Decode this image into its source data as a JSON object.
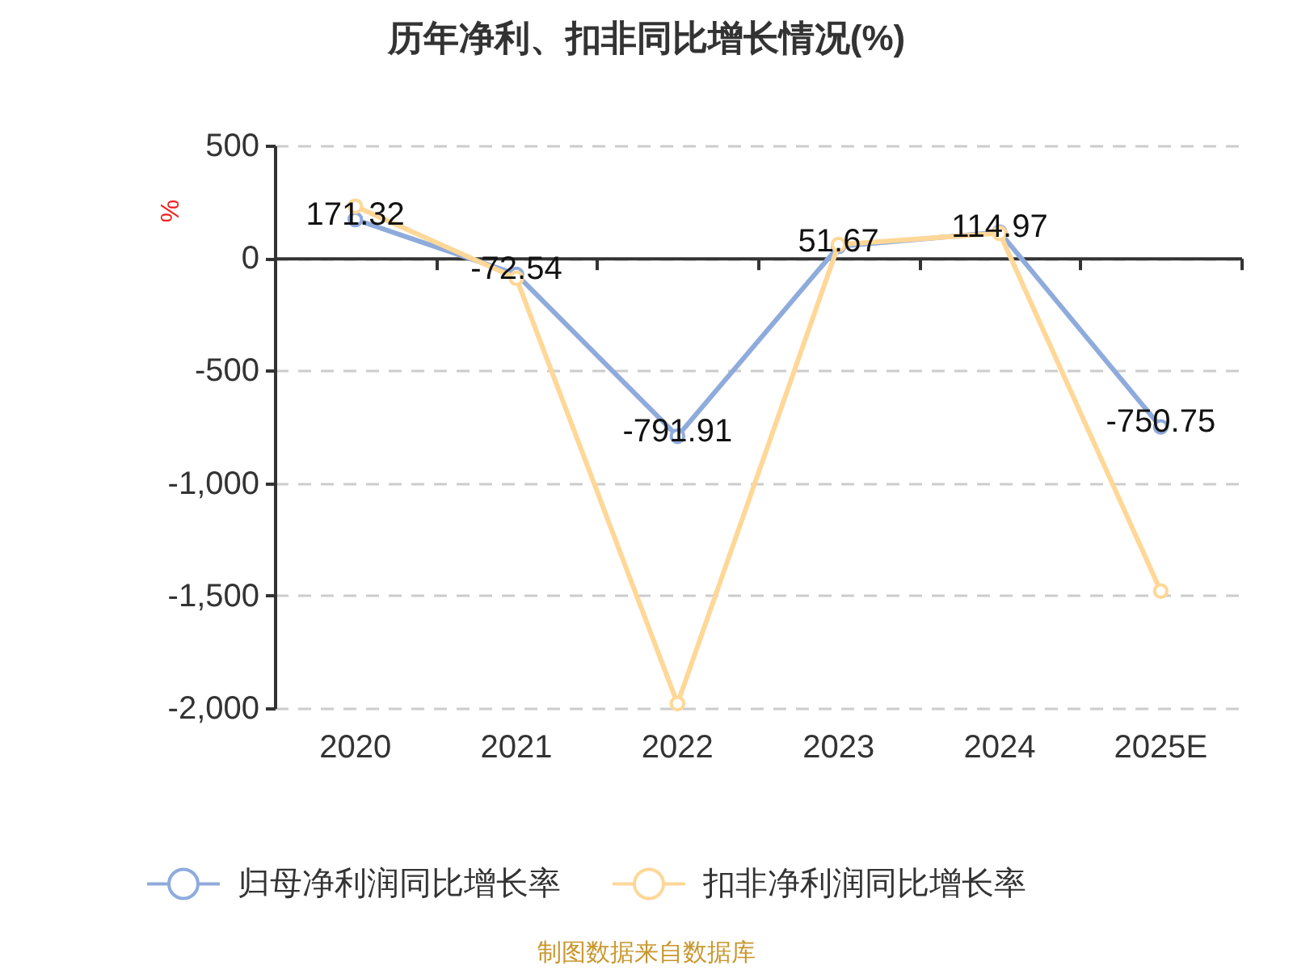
{
  "chart_data": {
    "type": "line",
    "title": "历年净利、扣非同比增长情况(%)",
    "ylabel": "%",
    "categories": [
      "2020",
      "2021",
      "2022",
      "2023",
      "2024",
      "2025E"
    ],
    "series": [
      {
        "name": "归母净利润同比增长率",
        "color": "#8fabdc",
        "values": [
          171.32,
          -72.54,
          -791.91,
          51.67,
          114.97,
          -750.75
        ],
        "value_labels": [
          "171.32",
          "-72.54",
          "-791.91",
          "51.67",
          "114.97",
          "-750.75"
        ]
      },
      {
        "name": "扣非净利润同比增长率",
        "color": "#ffd797",
        "values": [
          230,
          -90,
          -1980,
          60,
          110,
          -1480
        ]
      }
    ],
    "ylim": [
      -2000,
      500
    ],
    "yticks": [
      {
        "value": -2000,
        "label": "-2,000"
      },
      {
        "value": -1500,
        "label": "-1,500"
      },
      {
        "value": -1000,
        "label": "-1,000"
      },
      -500,
      0,
      500
    ],
    "grid": "y",
    "legend": "bottom",
    "marker": "circle",
    "annotations": [
      "制图数据来自数据库"
    ]
  }
}
